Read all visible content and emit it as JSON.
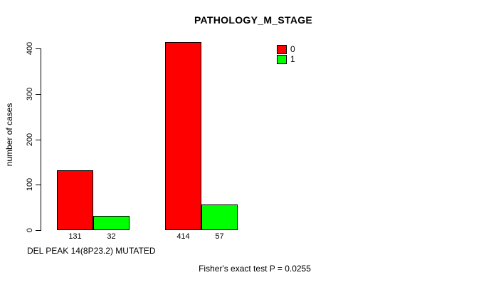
{
  "chart_data": {
    "type": "bar",
    "title": "PATHOLOGY_M_STAGE",
    "ylabel": "number of cases",
    "xlabel": "DEL PEAK 14(8P23.2) MUTATED",
    "annotation": "Fisher's exact test P = 0.0255",
    "ylim": [
      0,
      400
    ],
    "yticks": [
      0,
      100,
      200,
      300,
      400
    ],
    "grid": false,
    "legend_position": "top-right",
    "series": [
      {
        "name": "0",
        "color": "#ff0000",
        "values": [
          131,
          414
        ]
      },
      {
        "name": "1",
        "color": "#00ff00",
        "values": [
          32,
          57
        ]
      }
    ],
    "bar_value_labels": [
      [
        "131",
        "32"
      ],
      [
        "414",
        "57"
      ]
    ],
    "legend": {
      "entries": [
        {
          "label": "0",
          "color": "#ff0000"
        },
        {
          "label": "1",
          "color": "#00ff00"
        }
      ]
    }
  },
  "colors": {
    "background": "#ffffff",
    "axis": "#000000",
    "bar_border": "#000000"
  }
}
